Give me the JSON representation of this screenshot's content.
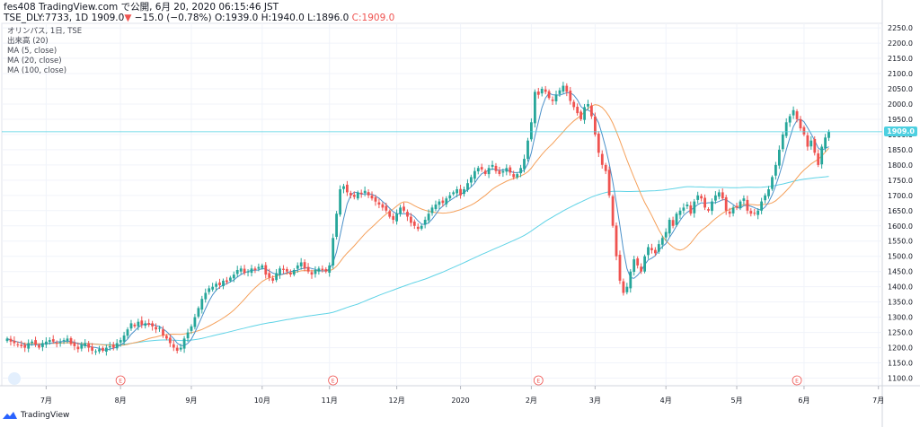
{
  "header": {
    "line1": "fes408 TradingView.com で公開, 6月 20, 2020 06:15:46 JST",
    "symbol": "TSE_DLY:7733, 1D",
    "last": "1909.0",
    "change": "−15.0 (−0.78%)",
    "ohlc": "O:1939.0 H:1940.0 L:1896.0",
    "close": "C:1909.0"
  },
  "legend": {
    "title": "オリンパス, 1日, TSE",
    "volume": "出来高 (20)",
    "ma5": "MA (5, close)",
    "ma20": "MA (20, close)",
    "ma100": "MA (100, close)"
  },
  "footer": {
    "brand": "TradingView"
  },
  "colors": {
    "up": "#26a69a",
    "down": "#ef5350",
    "ma5": "#4a90c9",
    "ma20": "#f5a05a",
    "ma100": "#5fd3e6",
    "price_line": "#4dd0e1"
  },
  "chart_data": {
    "type": "candlestick",
    "ylim": [
      1075,
      2265
    ],
    "y_ticks": [
      2250,
      2200,
      2150,
      2100,
      2050,
      2000,
      1950,
      1900,
      1850,
      1800,
      1750,
      1700,
      1650,
      1600,
      1550,
      1500,
      1450,
      1400,
      1350,
      1300,
      1250,
      1200,
      1150,
      1100
    ],
    "y_tick_labels": [
      "2250.0",
      "2200.0",
      "2150.0",
      "2100.0",
      "2050.0",
      "2000.0",
      "1950.0",
      "1900.0",
      "1850.0",
      "1800.0",
      "1750.0",
      "1700.0",
      "1650.0",
      "1600.0",
      "1550.0",
      "1500.0",
      "1450.0",
      "1400.0",
      "1350.0",
      "1300.0",
      "1250.0",
      "1200.0",
      "1150.0",
      "1100.0"
    ],
    "x_ticks": [
      {
        "label": "7月",
        "index": 11
      },
      {
        "label": "8月",
        "index": 32
      },
      {
        "label": "9月",
        "index": 52
      },
      {
        "label": "10月",
        "index": 72
      },
      {
        "label": "11月",
        "index": 91
      },
      {
        "label": "12月",
        "index": 110
      },
      {
        "label": "2020",
        "index": 128
      },
      {
        "label": "2月",
        "index": 148
      },
      {
        "label": "3月",
        "index": 166
      },
      {
        "label": "4月",
        "index": 186
      },
      {
        "label": "5月",
        "index": 206
      },
      {
        "label": "6月",
        "index": 225
      },
      {
        "label": "7月",
        "index": 246
      }
    ],
    "earnings_markers": [
      {
        "label": "E",
        "index": 32
      },
      {
        "label": "E",
        "index": 92
      },
      {
        "label": "E",
        "index": 150
      },
      {
        "label": "E",
        "index": 223
      }
    ],
    "last_price": "1909.0",
    "close": [
      1230,
      1220,
      1215,
      1210,
      1205,
      1200,
      1215,
      1220,
      1210,
      1200,
      1215,
      1220,
      1225,
      1220,
      1215,
      1218,
      1225,
      1230,
      1212,
      1205,
      1195,
      1210,
      1215,
      1200,
      1190,
      1188,
      1195,
      1190,
      1200,
      1205,
      1200,
      1215,
      1225,
      1240,
      1260,
      1280,
      1270,
      1285,
      1275,
      1280,
      1275,
      1270,
      1260,
      1265,
      1240,
      1230,
      1215,
      1200,
      1190,
      1200,
      1230,
      1250,
      1270,
      1300,
      1330,
      1360,
      1380,
      1395,
      1400,
      1410,
      1405,
      1420,
      1415,
      1430,
      1440,
      1455,
      1460,
      1445,
      1450,
      1460,
      1455,
      1465,
      1470,
      1440,
      1430,
      1420,
      1445,
      1460,
      1455,
      1450,
      1440,
      1455,
      1470,
      1480,
      1460,
      1450,
      1440,
      1455,
      1460,
      1455,
      1450,
      1470,
      1560,
      1640,
      1720,
      1730,
      1710,
      1700,
      1695,
      1710,
      1705,
      1715,
      1700,
      1690,
      1680,
      1670,
      1660,
      1650,
      1630,
      1620,
      1640,
      1660,
      1650,
      1630,
      1610,
      1600,
      1590,
      1600,
      1620,
      1640,
      1660,
      1670,
      1680,
      1675,
      1690,
      1700,
      1710,
      1720,
      1700,
      1720,
      1740,
      1760,
      1780,
      1790,
      1785,
      1770,
      1790,
      1800,
      1780,
      1770,
      1780,
      1790,
      1775,
      1760,
      1770,
      1790,
      1820,
      1880,
      1940,
      2040,
      2030,
      2050,
      2040,
      2020,
      2010,
      2030,
      2045,
      2060,
      2040,
      2010,
      1990,
      1970,
      1950,
      1990,
      2000,
      1960,
      1900,
      1840,
      1800,
      1780,
      1700,
      1600,
      1500,
      1420,
      1380,
      1400,
      1450,
      1490,
      1470,
      1450,
      1500,
      1530,
      1520,
      1510,
      1540,
      1560,
      1580,
      1620,
      1600,
      1640,
      1650,
      1660,
      1670,
      1640,
      1680,
      1700,
      1690,
      1660,
      1650,
      1680,
      1700,
      1710,
      1690,
      1650,
      1640,
      1660,
      1660,
      1680,
      1690,
      1650,
      1640,
      1640,
      1650,
      1680,
      1700,
      1720,
      1760,
      1800,
      1850,
      1900,
      1940,
      1960,
      1980,
      1950,
      1920,
      1900,
      1860,
      1880,
      1840,
      1800,
      1860,
      1890,
      1909
    ],
    "ma5_summary": "follows price closely",
    "ma20_summary": "smoothed medium trend",
    "ma100_summary": "slow rising trend from ~1230 to ~1760"
  }
}
